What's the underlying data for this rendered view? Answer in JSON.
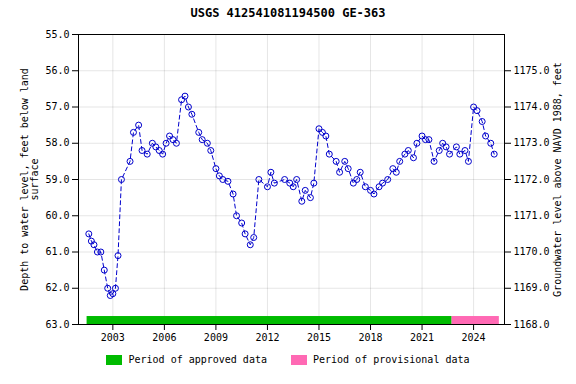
{
  "chart_data": {
    "type": "line",
    "title": "USGS 412541081194500 GE-363",
    "ylabel": "Depth to water level, feet below land\nsurface",
    "y2label": "Groundwater level above NAVD 1988, feet",
    "color": "#0000cc",
    "marker": "open_circle",
    "line_style": "dashed",
    "grid": true,
    "legend": "bottom",
    "xlim": [
      2001.0,
      2025.8
    ],
    "xticks": [
      2003,
      2006,
      2009,
      2012,
      2015,
      2018,
      2021,
      2024
    ],
    "ylim": [
      63.0,
      55.0
    ],
    "yticks": [
      {
        "value": 55.0,
        "label": "55.0"
      },
      {
        "value": 56.0,
        "label": "56.0"
      },
      {
        "value": 57.0,
        "label": "57.0"
      },
      {
        "value": 58.0,
        "label": "58.0"
      },
      {
        "value": 59.0,
        "label": "59.0"
      },
      {
        "value": 60.0,
        "label": "60.0"
      },
      {
        "value": 61.0,
        "label": "61.0"
      },
      {
        "value": 62.0,
        "label": "62.0"
      },
      {
        "value": 63.0,
        "label": "63.0"
      }
    ],
    "y2lim": [
      1168.0,
      1176.0
    ],
    "y2ticks": [
      {
        "value": 1168.0,
        "label": "1168.0"
      },
      {
        "value": 1169.0,
        "label": "1169.0"
      },
      {
        "value": 1170.0,
        "label": "1170.0"
      },
      {
        "value": 1171.0,
        "label": "1171.0"
      },
      {
        "value": 1172.0,
        "label": "1172.0"
      },
      {
        "value": 1173.0,
        "label": "1173.0"
      },
      {
        "value": 1174.0,
        "label": "1174.0"
      },
      {
        "value": 1175.0,
        "label": "1175.0"
      }
    ],
    "periods": [
      {
        "name": "Period of approved data",
        "color": "#00bb00",
        "start": 2001.5,
        "end": 2022.75
      },
      {
        "name": "Period of provisional data",
        "color": "#ff69b4",
        "start": 2022.75,
        "end": 2025.5
      }
    ],
    "x": [
      2001.6,
      2001.75,
      2001.9,
      2002.1,
      2002.3,
      2002.5,
      2002.7,
      2002.85,
      2003.0,
      2003.15,
      2003.3,
      2003.5,
      2004.0,
      2004.2,
      2004.5,
      2004.7,
      2005.0,
      2005.3,
      2005.5,
      2005.7,
      2005.9,
      2006.1,
      2006.3,
      2006.5,
      2006.7,
      2007.0,
      2007.2,
      2007.4,
      2007.6,
      2008.0,
      2008.2,
      2008.5,
      2008.7,
      2009.0,
      2009.2,
      2009.4,
      2009.7,
      2010.0,
      2010.2,
      2010.5,
      2010.7,
      2011.0,
      2011.2,
      2011.5,
      2012.0,
      2012.2,
      2012.4,
      2013.0,
      2013.3,
      2013.5,
      2013.7,
      2014.0,
      2014.2,
      2014.5,
      2014.7,
      2015.0,
      2015.2,
      2015.4,
      2015.6,
      2016.0,
      2016.2,
      2016.5,
      2016.7,
      2017.0,
      2017.2,
      2017.4,
      2017.7,
      2018.0,
      2018.2,
      2018.5,
      2018.7,
      2019.0,
      2019.3,
      2019.5,
      2019.7,
      2020.0,
      2020.2,
      2020.5,
      2020.7,
      2021.0,
      2021.2,
      2021.4,
      2021.7,
      2022.0,
      2022.2,
      2022.4,
      2022.6,
      2023.0,
      2023.2,
      2023.5,
      2023.7,
      2024.0,
      2024.2,
      2024.5,
      2024.7,
      2025.0,
      2025.2
    ],
    "values": [
      60.5,
      60.7,
      60.8,
      61.0,
      61.0,
      61.5,
      62.0,
      62.2,
      62.15,
      62.0,
      61.1,
      59.0,
      58.5,
      57.7,
      57.5,
      58.2,
      58.3,
      58.0,
      58.1,
      58.2,
      58.3,
      58.0,
      57.8,
      57.9,
      58.0,
      56.8,
      56.7,
      57.0,
      57.2,
      57.7,
      57.9,
      58.0,
      58.2,
      58.7,
      58.9,
      59.0,
      59.05,
      59.4,
      60.0,
      60.2,
      60.5,
      60.8,
      60.6,
      59.0,
      59.2,
      58.8,
      59.1,
      59.0,
      59.1,
      59.2,
      59.0,
      59.6,
      59.3,
      59.5,
      59.1,
      57.6,
      57.7,
      57.8,
      58.3,
      58.5,
      58.8,
      58.5,
      58.7,
      59.1,
      59.0,
      58.8,
      59.2,
      59.3,
      59.4,
      59.2,
      59.1,
      59.0,
      58.7,
      58.8,
      58.5,
      58.3,
      58.2,
      58.4,
      58.0,
      57.8,
      57.9,
      57.9,
      58.5,
      58.2,
      58.0,
      58.1,
      58.3,
      58.1,
      58.3,
      58.2,
      58.5,
      57.0,
      57.1,
      57.4,
      57.8,
      58.0,
      58.3
    ]
  }
}
